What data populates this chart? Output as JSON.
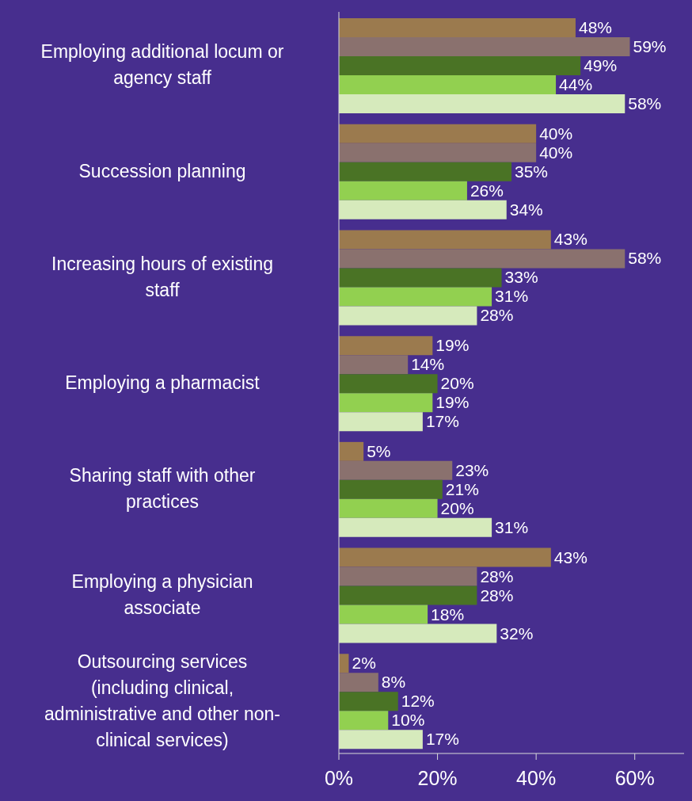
{
  "chart_data": {
    "type": "bar",
    "orientation": "horizontal",
    "categories": [
      "Employing additional locum or agency staff",
      "Succession planning",
      "Increasing hours of existing staff",
      "Employing a pharmacist",
      "Sharing staff with other practices",
      "Employing a physician associate",
      "Outsourcing services (including clinical, administrative and other non-clinical services)"
    ],
    "series": [
      {
        "color": "#9b7a4e",
        "values": [
          48,
          40,
          43,
          19,
          5,
          43,
          2
        ],
        "value_labels": [
          "48%",
          "40%",
          "43%",
          "19%",
          "5%",
          "43%",
          "2%"
        ]
      },
      {
        "color": "#8a716e",
        "values": [
          59,
          40,
          58,
          14,
          23,
          28,
          8
        ],
        "value_labels": [
          "59%",
          "40%",
          "58%",
          "14%",
          "23%",
          "28%",
          "8%"
        ]
      },
      {
        "color": "#4a7325",
        "values": [
          49,
          35,
          33,
          20,
          21,
          28,
          12
        ],
        "value_labels": [
          "49%",
          "35%",
          "33%",
          "20%",
          "21%",
          "28%",
          "12%"
        ]
      },
      {
        "color": "#92d050",
        "values": [
          44,
          26,
          31,
          19,
          20,
          18,
          10
        ],
        "value_labels": [
          "44%",
          "26%",
          "31%",
          "19%",
          "20%",
          "18%",
          "10%"
        ]
      },
      {
        "color": "#d6eabc",
        "values": [
          58,
          34,
          28,
          17,
          31,
          32,
          17
        ],
        "value_labels": [
          "58%",
          "34%",
          "28%",
          "17%",
          "31%",
          "32%",
          "17%"
        ]
      }
    ],
    "xlim": [
      0,
      70
    ],
    "xticks": [
      {
        "value": 0,
        "label": "0%"
      },
      {
        "value": 20,
        "label": "20%"
      },
      {
        "value": 40,
        "label": "40%"
      },
      {
        "value": 60,
        "label": "60%"
      }
    ],
    "grid": false,
    "legend": false
  }
}
